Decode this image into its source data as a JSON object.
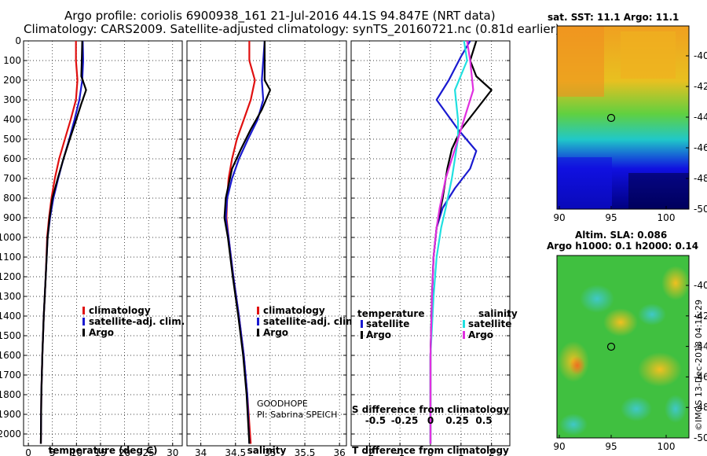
{
  "header": {
    "line1": "Argo profile: coriolis 6900938_161 21-Jul-2016 44.1S 94.847E (NRT data)",
    "line2": "Climatology: CARS2009. Satellite-adjusted climatology: synTS_20160721.nc (0.81d earlier)"
  },
  "colors": {
    "argo": "#000000",
    "climatology": "#e01010",
    "satellite": "#1a1ad0",
    "sat_salinity": "#20e0e0",
    "argo_salinity": "#e030e0"
  },
  "depth_ticks": [
    "0",
    "100",
    "200",
    "300",
    "400",
    "500",
    "600",
    "700",
    "800",
    "900",
    "1000",
    "1100",
    "1200",
    "1300",
    "1400",
    "1500",
    "1600",
    "1700",
    "1800",
    "1900",
    "2000"
  ],
  "chart_data": [
    {
      "type": "line",
      "name": "temperature",
      "xlabel": "temperature (deg C)",
      "ylabel": "depth",
      "xlim": [
        -1,
        32
      ],
      "ylim": [
        0,
        2060
      ],
      "x_ticks": [
        "0",
        "5",
        "10",
        "15",
        "20",
        "25",
        "30"
      ],
      "legend": [
        "climatology",
        "satellite-adj. clim.",
        "Argo"
      ],
      "series": [
        {
          "name": "climatology",
          "color": "#e01010",
          "points": [
            [
              9.9,
              0
            ],
            [
              9.9,
              100
            ],
            [
              10.2,
              200
            ],
            [
              9.9,
              300
            ],
            [
              8.8,
              400
            ],
            [
              7.6,
              500
            ],
            [
              6.4,
              600
            ],
            [
              5.5,
              700
            ],
            [
              4.8,
              800
            ],
            [
              4.3,
              900
            ],
            [
              3.9,
              1000
            ],
            [
              3.6,
              1200
            ],
            [
              3.2,
              1400
            ],
            [
              2.9,
              1600
            ],
            [
              2.7,
              1800
            ],
            [
              2.6,
              2050
            ]
          ]
        },
        {
          "name": "satellite-adj. clim.",
          "color": "#1a1ad0",
          "points": [
            [
              11.3,
              0
            ],
            [
              11.4,
              100
            ],
            [
              11.2,
              200
            ],
            [
              10.6,
              300
            ],
            [
              9.6,
              400
            ],
            [
              8.5,
              500
            ],
            [
              7.3,
              600
            ],
            [
              6.2,
              700
            ],
            [
              5.2,
              800
            ],
            [
              4.5,
              900
            ],
            [
              4.0,
              1000
            ],
            [
              3.6,
              1200
            ],
            [
              3.2,
              1400
            ],
            [
              2.9,
              1600
            ],
            [
              2.7,
              1800
            ],
            [
              2.6,
              2050
            ]
          ]
        },
        {
          "name": "Argo",
          "color": "#000000",
          "points": [
            [
              11.2,
              0
            ],
            [
              11.1,
              100
            ],
            [
              11.0,
              180
            ],
            [
              12.0,
              250
            ],
            [
              11.0,
              320
            ],
            [
              9.7,
              420
            ],
            [
              8.6,
              500
            ],
            [
              7.3,
              600
            ],
            [
              6.1,
              700
            ],
            [
              5.0,
              800
            ],
            [
              4.4,
              900
            ],
            [
              4.0,
              1000
            ],
            [
              3.6,
              1200
            ],
            [
              3.2,
              1400
            ],
            [
              2.9,
              1600
            ],
            [
              2.7,
              1800
            ],
            [
              2.6,
              2050
            ]
          ]
        }
      ]
    },
    {
      "type": "line",
      "name": "salinity",
      "xlabel": "salinity",
      "ylabel": "depth",
      "xlim": [
        33.8,
        36.1
      ],
      "ylim": [
        0,
        2060
      ],
      "x_ticks": [
        "34",
        "34.5",
        "35",
        "35.5",
        "36"
      ],
      "legend": [
        "climatology",
        "satellite-adj. clim.",
        "Argo"
      ],
      "annotation": [
        "GOODHOPE",
        "PI: Sabrina SPEICH"
      ],
      "series": [
        {
          "name": "climatology",
          "color": "#e01010",
          "points": [
            [
              34.7,
              0
            ],
            [
              34.7,
              100
            ],
            [
              34.78,
              200
            ],
            [
              34.72,
              300
            ],
            [
              34.62,
              400
            ],
            [
              34.52,
              500
            ],
            [
              34.45,
              600
            ],
            [
              34.4,
              700
            ],
            [
              34.38,
              800
            ],
            [
              34.37,
              900
            ],
            [
              34.4,
              1000
            ],
            [
              34.47,
              1200
            ],
            [
              34.55,
              1400
            ],
            [
              34.62,
              1600
            ],
            [
              34.67,
              1800
            ],
            [
              34.72,
              2050
            ]
          ]
        },
        {
          "name": "satellite-adj. clim.",
          "color": "#1a1ad0",
          "points": [
            [
              34.92,
              0
            ],
            [
              34.9,
              100
            ],
            [
              34.88,
              200
            ],
            [
              34.9,
              300
            ],
            [
              34.82,
              400
            ],
            [
              34.68,
              500
            ],
            [
              34.55,
              600
            ],
            [
              34.45,
              700
            ],
            [
              34.38,
              800
            ],
            [
              34.36,
              900
            ],
            [
              34.4,
              1000
            ],
            [
              34.47,
              1200
            ],
            [
              34.55,
              1400
            ],
            [
              34.62,
              1600
            ],
            [
              34.67,
              1800
            ],
            [
              34.7,
              2050
            ]
          ]
        },
        {
          "name": "Argo",
          "color": "#000000",
          "points": [
            [
              34.92,
              0
            ],
            [
              34.92,
              100
            ],
            [
              34.92,
              200
            ],
            [
              35.0,
              250
            ],
            [
              34.88,
              350
            ],
            [
              34.72,
              450
            ],
            [
              34.58,
              550
            ],
            [
              34.45,
              650
            ],
            [
              34.36,
              800
            ],
            [
              34.34,
              900
            ],
            [
              34.39,
              1000
            ],
            [
              34.46,
              1200
            ],
            [
              34.54,
              1400
            ],
            [
              34.61,
              1600
            ],
            [
              34.66,
              1800
            ],
            [
              34.7,
              2050
            ]
          ]
        }
      ]
    },
    {
      "type": "line",
      "name": "difference",
      "xlabel": "T difference from climatology",
      "xlabel_top": "S difference from climatology",
      "ylabel": "depth",
      "xlim": [
        -2.6,
        2.6
      ],
      "ylim": [
        0,
        2060
      ],
      "x_ticks": [
        "-2",
        "-1",
        "0",
        "1",
        "2"
      ],
      "x_ticks_s": [
        "-0.5",
        "-0.25",
        "0",
        "0.25",
        "0.5"
      ],
      "legend_temperature_title": "temperature",
      "legend_salinity_title": "salinity",
      "legend": [
        "satellite",
        "Argo",
        "satellite",
        "Argo"
      ],
      "series": [
        {
          "name": "T satellite",
          "color": "#1a1ad0",
          "points": [
            [
              1.3,
              0
            ],
            [
              1.0,
              80
            ],
            [
              0.6,
              200
            ],
            [
              0.2,
              300
            ],
            [
              0.9,
              450
            ],
            [
              1.5,
              560
            ],
            [
              1.3,
              650
            ],
            [
              0.8,
              750
            ],
            [
              0.4,
              850
            ],
            [
              0.2,
              950
            ],
            [
              0.1,
              1100
            ],
            [
              0.05,
              1300
            ],
            [
              0.0,
              1600
            ],
            [
              0.0,
              2050
            ]
          ]
        },
        {
          "name": "T Argo",
          "color": "#000000",
          "points": [
            [
              1.5,
              0
            ],
            [
              1.3,
              100
            ],
            [
              1.5,
              180
            ],
            [
              2.0,
              250
            ],
            [
              1.5,
              350
            ],
            [
              1.0,
              450
            ],
            [
              0.7,
              550
            ],
            [
              0.55,
              650
            ],
            [
              0.4,
              800
            ],
            [
              0.2,
              950
            ],
            [
              0.1,
              1100
            ],
            [
              0.05,
              1300
            ],
            [
              0.0,
              1600
            ],
            [
              0.0,
              2050
            ]
          ]
        },
        {
          "name": "S satellite",
          "color": "#20e0e0",
          "points": [
            [
              1.1,
              0
            ],
            [
              1.2,
              100
            ],
            [
              0.8,
              250
            ],
            [
              0.9,
              400
            ],
            [
              0.9,
              500
            ],
            [
              0.8,
              600
            ],
            [
              0.7,
              700
            ],
            [
              0.5,
              850
            ],
            [
              0.35,
              950
            ],
            [
              0.2,
              1100
            ],
            [
              0.1,
              1300
            ],
            [
              0.0,
              1600
            ],
            [
              0.0,
              2050
            ]
          ]
        },
        {
          "name": "S Argo",
          "color": "#e030e0",
          "points": [
            [
              1.2,
              0
            ],
            [
              1.3,
              100
            ],
            [
              1.4,
              250
            ],
            [
              1.1,
              400
            ],
            [
              0.8,
              550
            ],
            [
              0.5,
              700
            ],
            [
              0.3,
              850
            ],
            [
              0.2,
              950
            ],
            [
              0.1,
              1100
            ],
            [
              0.05,
              1300
            ],
            [
              0.0,
              1600
            ],
            [
              0.0,
              2050
            ]
          ]
        }
      ]
    },
    {
      "type": "heatmap",
      "name": "sst-map",
      "title": "sat. SST: 11.1 Argo: 11.1",
      "x_ticks": [
        "90",
        "95",
        "100"
      ],
      "y_ticks": [
        "-40",
        "-42",
        "-44",
        "-46",
        "-48",
        "-50"
      ],
      "marker": [
        94.847,
        -44.1
      ]
    },
    {
      "type": "heatmap",
      "name": "sla-map",
      "title": "Altim. SLA: 0.086",
      "subtitle": "Argo h1000: 0.1 h2000: 0.14",
      "x_ticks": [
        "90",
        "95",
        "100"
      ],
      "y_ticks": [
        "-40",
        "-42",
        "-44",
        "-46",
        "-48",
        "-50"
      ],
      "marker": [
        94.847,
        -44.1
      ]
    }
  ],
  "footer": {
    "stamp": "©IMOS 13-Dec-2018 04:16:29"
  }
}
